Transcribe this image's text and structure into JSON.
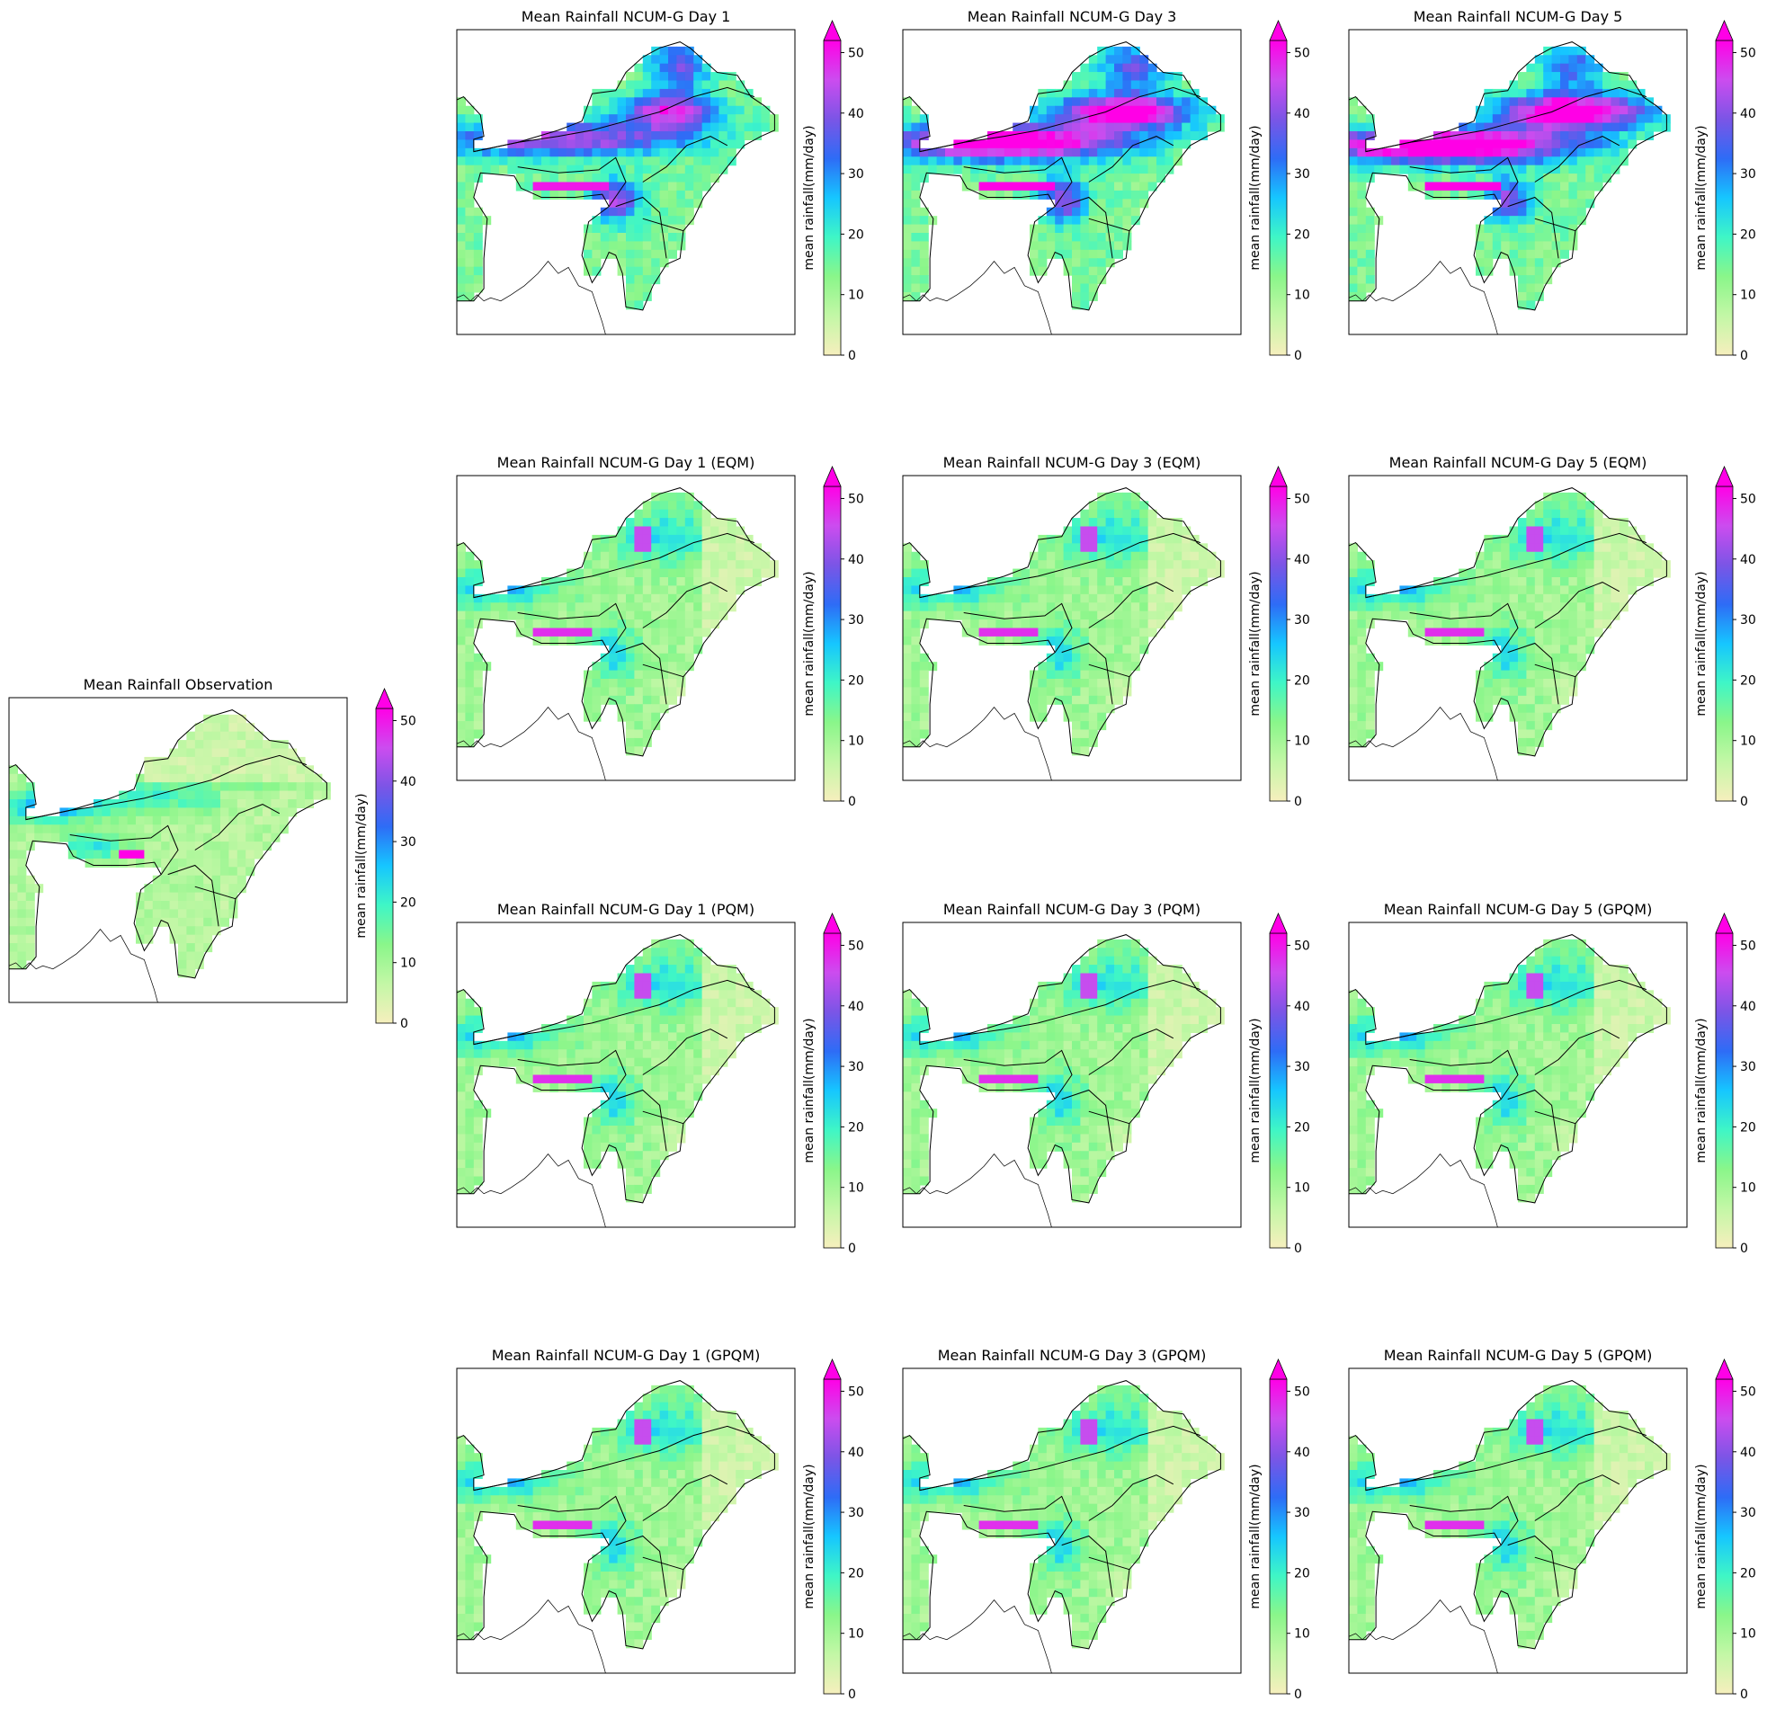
{
  "figure": {
    "colorbar": {
      "label": "mean rainfall(mm/day)",
      "ticks": [
        0,
        10,
        20,
        30,
        40,
        50
      ],
      "vmin": 0,
      "vmax": 52,
      "extend": "max",
      "colors": [
        "#f6efbd",
        "#c3f7a6",
        "#8af68a",
        "#3ff6c6",
        "#16c6ff",
        "#2e6cf6",
        "#7b55e6",
        "#cc4cef",
        "#ff00e6"
      ]
    }
  },
  "chart_data": [
    {
      "type": "heatmap",
      "title": "Mean Rainfall Observation",
      "field": "obs",
      "colorbar_label": "mean rainfall(mm/day)"
    },
    {
      "type": "heatmap",
      "title": "Mean Rainfall NCUM-G Day 1",
      "field": "raw1",
      "colorbar_label": "mean rainfall(mm/day)"
    },
    {
      "type": "heatmap",
      "title": "Mean Rainfall NCUM-G Day 3",
      "field": "raw3",
      "colorbar_label": "mean rainfall(mm/day)"
    },
    {
      "type": "heatmap",
      "title": "Mean Rainfall NCUM-G Day 5",
      "field": "raw5",
      "colorbar_label": "mean rainfall(mm/day)"
    },
    {
      "type": "heatmap",
      "title": "Mean Rainfall NCUM-G Day 1 (EQM)",
      "field": "bc",
      "colorbar_label": "mean rainfall(mm/day)"
    },
    {
      "type": "heatmap",
      "title": "Mean Rainfall NCUM-G Day 3 (EQM)",
      "field": "bc",
      "colorbar_label": "mean rainfall(mm/day)"
    },
    {
      "type": "heatmap",
      "title": "Mean Rainfall NCUM-G Day 5 (EQM)",
      "field": "bc",
      "colorbar_label": "mean rainfall(mm/day)"
    },
    {
      "type": "heatmap",
      "title": "Mean Rainfall NCUM-G Day 1 (PQM)",
      "field": "bc",
      "colorbar_label": "mean rainfall(mm/day)"
    },
    {
      "type": "heatmap",
      "title": "Mean Rainfall NCUM-G Day 3 (PQM)",
      "field": "bc",
      "colorbar_label": "mean rainfall(mm/day)"
    },
    {
      "type": "heatmap",
      "title": "Mean Rainfall NCUM-G Day 5 (GPQM)",
      "field": "bc",
      "colorbar_label": "mean rainfall(mm/day)"
    },
    {
      "type": "heatmap",
      "title": "Mean Rainfall NCUM-G Day 1 (GPQM)",
      "field": "bc",
      "colorbar_label": "mean rainfall(mm/day)"
    },
    {
      "type": "heatmap",
      "title": "Mean Rainfall NCUM-G Day 3 (GPQM)",
      "field": "bc",
      "colorbar_label": "mean rainfall(mm/day)"
    },
    {
      "type": "heatmap",
      "title": "Mean Rainfall NCUM-G Day 5 (GPQM)",
      "field": "bc",
      "colorbar_label": "mean rainfall(mm/day)"
    }
  ]
}
